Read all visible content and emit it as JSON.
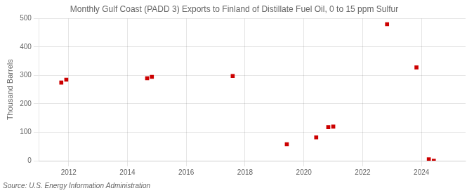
{
  "chart_data": {
    "type": "scatter",
    "title": "Monthly Gulf Coast (PADD 3) Exports to Finland of Distillate Fuel Oil, 0 to 15 ppm Sulfur",
    "ylabel": "Thousand Barrels",
    "annotations": [
      "Source: U.S. Energy Information Administration"
    ],
    "x": [
      2011.75,
      2011.92,
      2014.67,
      2014.83,
      2017.58,
      2019.42,
      2020.42,
      2020.83,
      2021.0,
      2022.83,
      2023.83,
      2024.25,
      2024.42
    ],
    "values": [
      275,
      285,
      290,
      295,
      298,
      58,
      82,
      118,
      120,
      480,
      328,
      5,
      0
    ],
    "color": "#cc0000",
    "marker": "square",
    "xlim": [
      2011.0,
      2025.5
    ],
    "ylim": [
      0,
      500
    ],
    "xticks": [
      2012,
      2014,
      2016,
      2018,
      2020,
      2022,
      2024
    ],
    "yticks": [
      0,
      100,
      200,
      300,
      400,
      500
    ],
    "grid": true
  }
}
